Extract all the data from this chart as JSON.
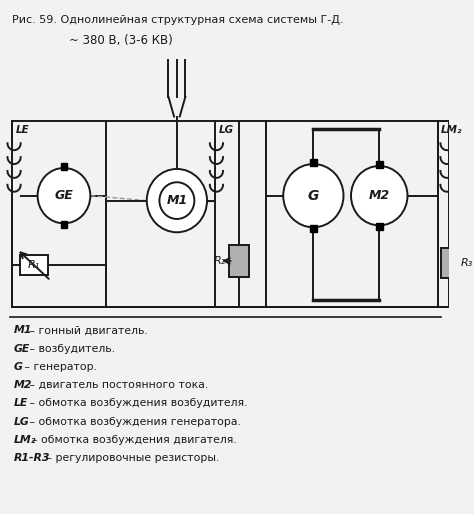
{
  "title": "Рис. 59. Однолинейная структурная схема системы Г-Д.",
  "subtitle": "~ 380 В, (3-6 КВ)",
  "legend_items": [
    [
      "M1",
      " – гонный двигатель."
    ],
    [
      "GE",
      " – возбудитель."
    ],
    [
      "G",
      " – генератор."
    ],
    [
      "M2",
      " – двигатель постоянного тока."
    ],
    [
      "LE",
      " – обмотка возбуждения возбудителя."
    ],
    [
      "LG",
      " – обмотка возбуждения генератора."
    ],
    [
      "LM₂",
      "– обмотка возбуждения двигателя."
    ],
    [
      "R1-R3",
      " – регулировочные резисторы."
    ]
  ],
  "bg_color": "#f2f2f2",
  "line_color": "#1a1a1a",
  "dashed_color": "#999999"
}
